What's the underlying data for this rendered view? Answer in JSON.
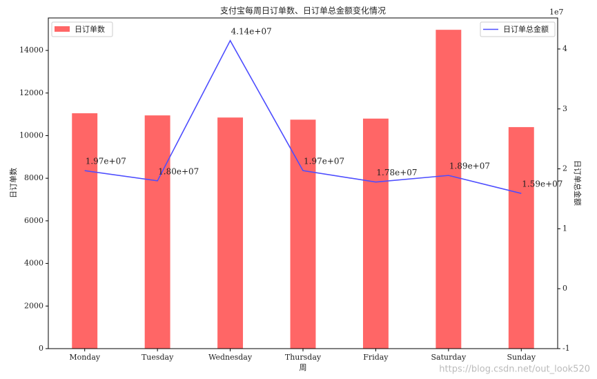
{
  "chart_data": {
    "type": "bar",
    "title": "支付宝每周日订单数、日订单总金额变化情况",
    "x_label": "周",
    "y_label": "日订单数",
    "y2_label": "日订单总金额",
    "y2_offset_text": "1e7",
    "watermark": "https://blog.csdn.net/out_look520",
    "categories": [
      "Monday",
      "Tuesday",
      "Wednesday",
      "Thursday",
      "Friday",
      "Saturday",
      "Sunday"
    ],
    "series": [
      {
        "name": "日订单数",
        "type": "bar",
        "color": "#ff6666",
        "legend": "upper left",
        "values": [
          11050,
          10950,
          10850,
          10750,
          10800,
          14969,
          10400
        ]
      },
      {
        "name": "日订单总金额",
        "type": "line",
        "axis": "y2",
        "color": "#4d4dff",
        "legend": "upper right",
        "values": [
          19700000,
          18000000,
          41400000,
          19700000,
          17800000,
          18900000,
          15900000
        ],
        "value_labels": [
          "1.97e+07",
          "1.80e+07",
          "4.14e+07",
          "1.97e+07",
          "1.78e+07",
          "1.89e+07",
          "1.59e+07"
        ]
      }
    ],
    "ylim": [
      0,
      15525
    ],
    "yticks": [
      0,
      2000,
      4000,
      6000,
      8000,
      10000,
      12000,
      14000
    ],
    "y2lim": [
      -10000000,
      45180000
    ],
    "y2ticks": [
      {
        "value": -10000000,
        "label": "-1"
      },
      {
        "value": 0,
        "label": "0"
      },
      {
        "value": 10000000,
        "label": "1"
      },
      {
        "value": 20000000,
        "label": "2"
      },
      {
        "value": 30000000,
        "label": "3"
      },
      {
        "value": 40000000,
        "label": "4"
      }
    ],
    "grid": false
  }
}
